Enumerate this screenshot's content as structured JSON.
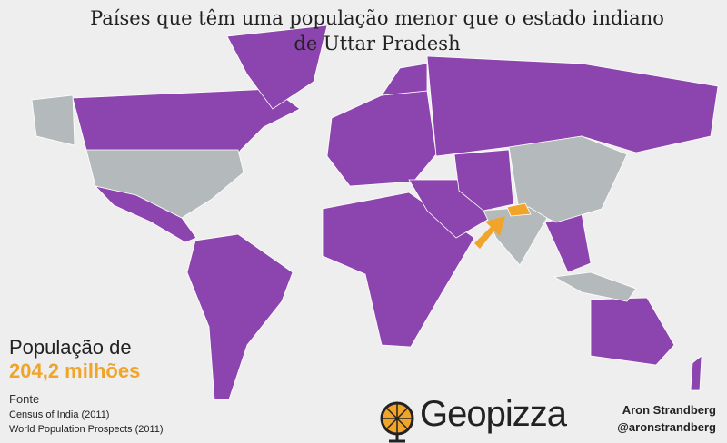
{
  "title": [
    "Países que têm uma população menor que o estado indiano",
    "de Uttar Pradesh"
  ],
  "population": {
    "label": "População de",
    "value": "204,2 milhões"
  },
  "sources": {
    "heading": "Fonte",
    "items": [
      "Census of India (2011)",
      "World Population Prospects (2011)"
    ]
  },
  "brand": "Geopizza",
  "author": {
    "name": "Aron Strandberg",
    "handle": "@aronstrandberg"
  }
}
